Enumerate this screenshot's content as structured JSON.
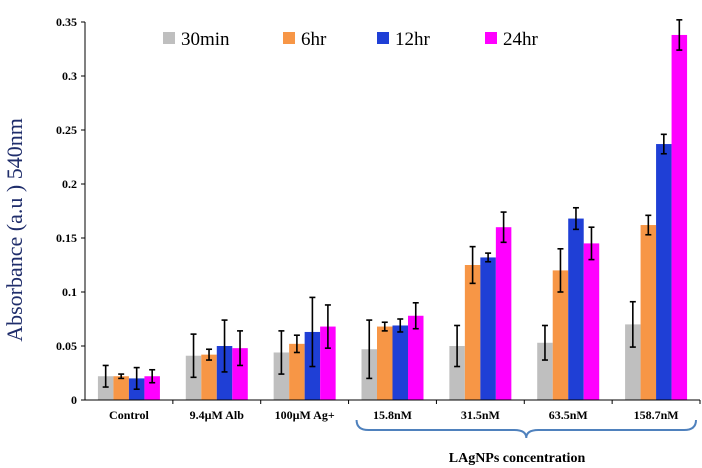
{
  "chart_data": {
    "type": "bar",
    "title": "",
    "xlabel": "",
    "ylabel": "Absorbance (a.u ) 540nm",
    "ylim": [
      0,
      0.35
    ],
    "yticks": [
      "0",
      "0.05",
      "0.1",
      "0.15",
      "0.2",
      "0.25",
      "0.3",
      "0.35"
    ],
    "ytick_values": [
      0,
      0.05,
      0.1,
      0.15,
      0.2,
      0.25,
      0.3,
      0.35
    ],
    "categories": [
      "Control",
      "9.4µM Alb",
      "100µM Ag+",
      "15.8nM",
      "31.5nM",
      "63.5nM",
      "158.7nM"
    ],
    "series": [
      {
        "name": "30min",
        "color": "#bfbfbf",
        "values": [
          0.022,
          0.041,
          0.044,
          0.047,
          0.05,
          0.053,
          0.07
        ],
        "errors": [
          0.01,
          0.02,
          0.02,
          0.027,
          0.019,
          0.016,
          0.021
        ]
      },
      {
        "name": "6hr",
        "color": "#f79646",
        "values": [
          0.022,
          0.042,
          0.052,
          0.068,
          0.125,
          0.12,
          0.162
        ],
        "errors": [
          0.002,
          0.005,
          0.008,
          0.004,
          0.017,
          0.02,
          0.009
        ]
      },
      {
        "name": "12hr",
        "color": "#1f3fd6",
        "values": [
          0.02,
          0.05,
          0.063,
          0.069,
          0.132,
          0.168,
          0.237
        ],
        "errors": [
          0.01,
          0.024,
          0.032,
          0.006,
          0.004,
          0.01,
          0.009
        ]
      },
      {
        "name": "24hr",
        "color": "#ff00ff",
        "values": [
          0.022,
          0.048,
          0.068,
          0.078,
          0.16,
          0.145,
          0.338
        ],
        "errors": [
          0.006,
          0.016,
          0.02,
          0.012,
          0.014,
          0.015,
          0.014
        ]
      }
    ],
    "legend_position": "top",
    "group_bracket": {
      "label": "LAgNPs concentration",
      "from_category": 3,
      "to_category": 6
    },
    "bracket_color": "#4f81bd"
  }
}
